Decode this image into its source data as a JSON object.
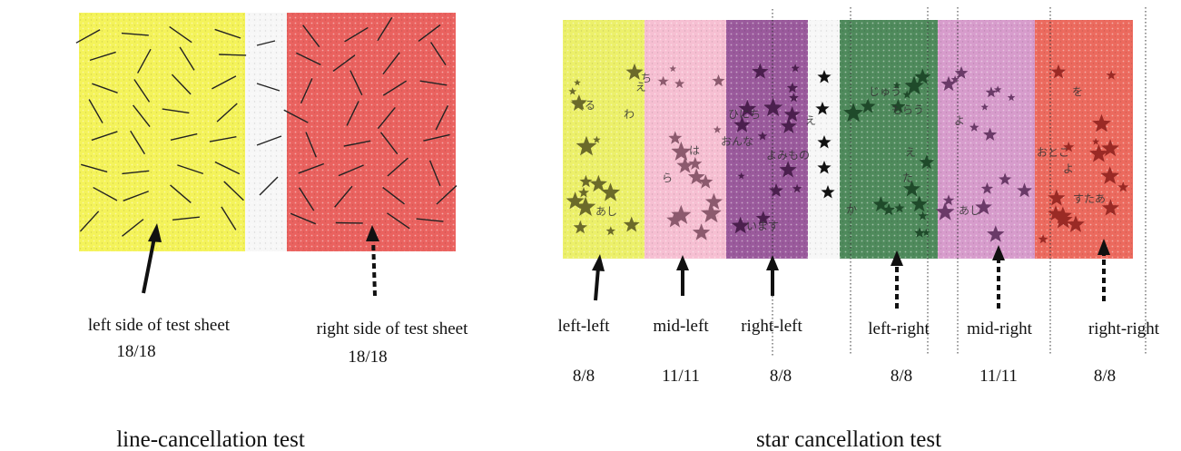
{
  "line_test": {
    "title": "line-cancellation test",
    "panels": [
      {
        "label": "left side of test sheet",
        "score": "18/18"
      },
      {
        "label": "right side of test sheet",
        "score": "18/18"
      }
    ]
  },
  "star_test": {
    "title": "star cancellation test",
    "panels": [
      {
        "label": "left-left",
        "score": "8/8"
      },
      {
        "label": "mid-left",
        "score": "11/11"
      },
      {
        "label": "right-left",
        "score": "8/8"
      },
      {
        "label": "left-right",
        "score": "8/8"
      },
      {
        "label": "mid-right",
        "score": "11/11"
      },
      {
        "label": "right-right",
        "score": "8/8"
      }
    ],
    "sheet_words": [
      "ち",
      "え",
      "わ",
      "る",
      "あし",
      "は",
      "ら",
      "ひにち",
      "おんな",
      "え",
      "よみもの",
      "います",
      "じゅう",
      "もらう",
      "え",
      "た",
      "か",
      "よ",
      "あし",
      "を",
      "おとこ",
      "よ",
      "すたあ"
    ]
  }
}
